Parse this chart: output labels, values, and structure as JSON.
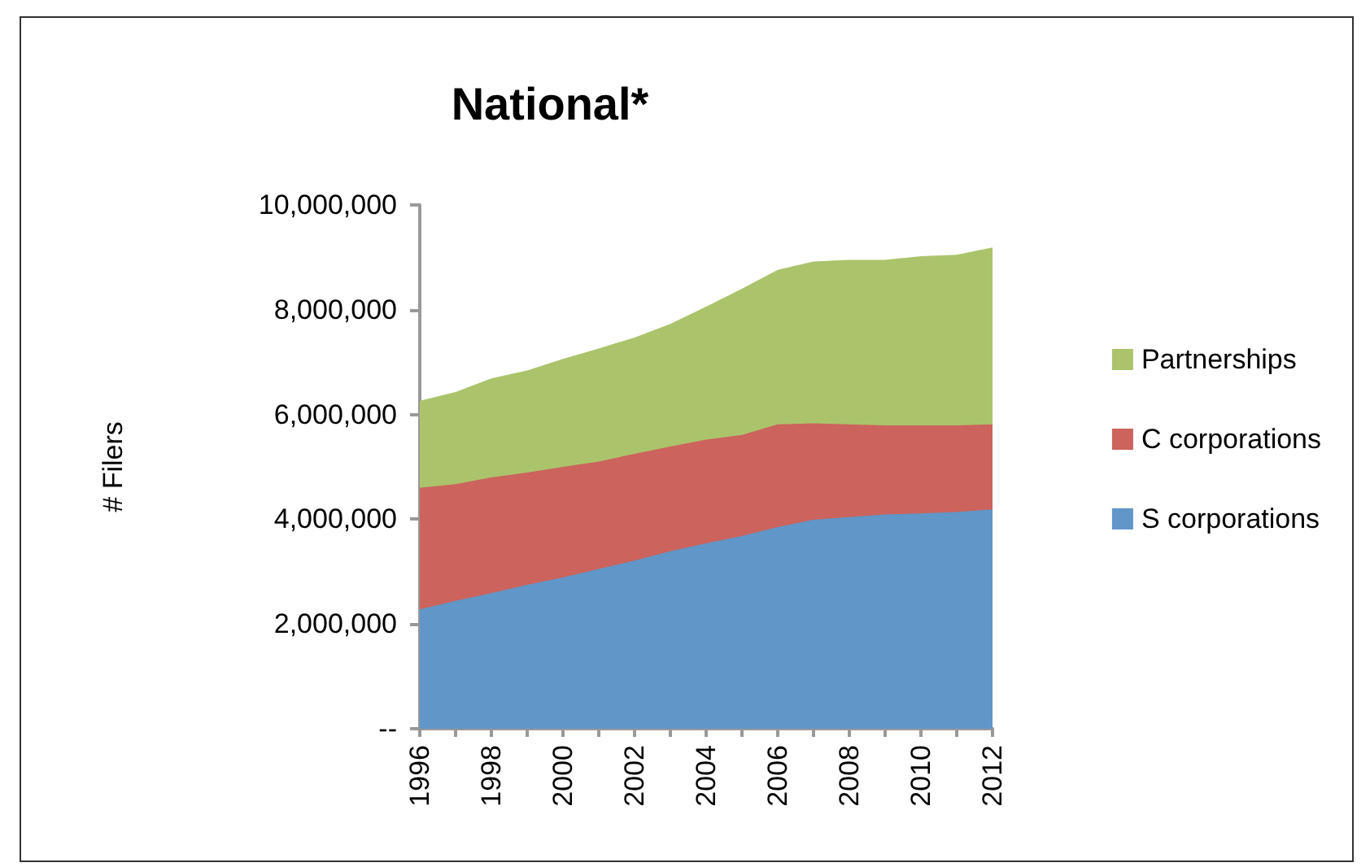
{
  "chart_data": {
    "type": "area",
    "title": "National*",
    "ylabel": "# Filers",
    "stacked": true,
    "grid": false,
    "legend": "right",
    "x": [
      1996,
      1997,
      1998,
      1999,
      2000,
      2001,
      2002,
      2003,
      2004,
      2005,
      2006,
      2007,
      2008,
      2009,
      2010,
      2011,
      2012
    ],
    "xlim": [
      1996,
      2012
    ],
    "xticks": [
      1996,
      1998,
      2000,
      2002,
      2004,
      2006,
      2008,
      2010,
      2012
    ],
    "ylim": [
      0,
      10000000
    ],
    "yticks": [
      {
        "value": 0,
        "label": "--"
      },
      {
        "value": 2000000,
        "label": "2,000,000"
      },
      {
        "value": 4000000,
        "label": "4,000,000"
      },
      {
        "value": 6000000,
        "label": "6,000,000"
      },
      {
        "value": 8000000,
        "label": "8,000,000"
      },
      {
        "value": 10000000,
        "label": "10,000,000"
      }
    ],
    "series": [
      {
        "name": "S corporations",
        "color": "#6096c8",
        "values": [
          2280000,
          2440000,
          2590000,
          2750000,
          2890000,
          3050000,
          3210000,
          3390000,
          3540000,
          3680000,
          3850000,
          3990000,
          4040000,
          4090000,
          4110000,
          4140000,
          4190000
        ]
      },
      {
        "name": "C corporations",
        "color": "#cc635c",
        "values": [
          2320000,
          2230000,
          2210000,
          2140000,
          2110000,
          2050000,
          2040000,
          2000000,
          1980000,
          1930000,
          1960000,
          1840000,
          1770000,
          1700000,
          1680000,
          1650000,
          1620000
        ]
      },
      {
        "name": "Partnerships",
        "color": "#abc46c",
        "values": [
          1660000,
          1760000,
          1890000,
          1950000,
          2060000,
          2160000,
          2220000,
          2340000,
          2540000,
          2790000,
          2950000,
          3090000,
          3140000,
          3160000,
          3230000,
          3260000,
          3380000
        ]
      }
    ]
  }
}
